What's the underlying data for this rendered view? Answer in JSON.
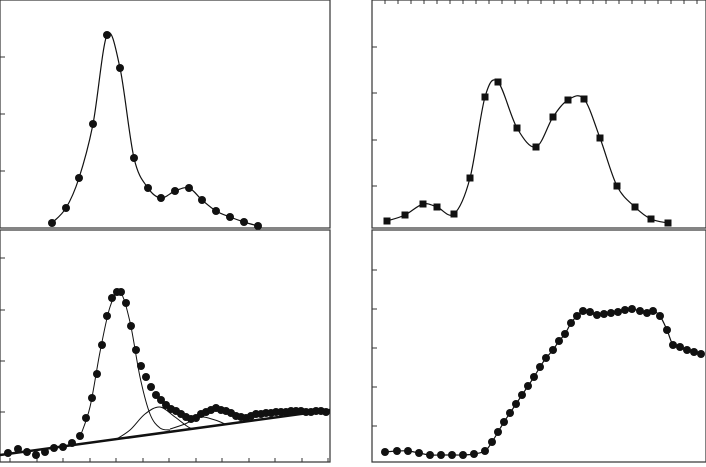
{
  "chart_data": [
    {
      "type": "scatter",
      "xlim": [
        0,
        330
      ],
      "ylim": [
        0,
        228
      ],
      "yticks": [
        57,
        114,
        171
      ],
      "series": [
        {
          "color": "#111111",
          "marker": "circle",
          "line": true,
          "x": [
            52,
            66,
            79,
            93,
            107,
            120,
            134,
            148,
            161,
            175,
            189,
            202,
            216,
            230,
            244,
            258
          ],
          "values": [
            5,
            20,
            50,
            104,
            193,
            160,
            70,
            40,
            30,
            37,
            40,
            28,
            17,
            11,
            6,
            2
          ]
        }
      ]
    },
    {
      "type": "scatter",
      "xlim": [
        0,
        334
      ],
      "ylim": [
        0,
        228
      ],
      "yticks": [
        42,
        88,
        135,
        181
      ],
      "xticks": [
        13,
        26,
        39,
        52,
        65,
        78,
        91,
        104,
        117,
        130,
        143,
        156,
        169,
        182,
        195,
        208,
        221,
        234,
        247,
        260,
        273,
        286,
        299,
        312,
        325
      ],
      "series": [
        {
          "color": "#111111",
          "marker": "square",
          "line": true,
          "x": [
            15,
            33,
            51,
            65,
            82,
            98,
            113,
            126,
            145,
            164,
            181,
            196,
            212,
            228,
            245,
            263,
            279,
            296
          ],
          "values": [
            7,
            13,
            24,
            21,
            14,
            50,
            131,
            146,
            100,
            81,
            111,
            128,
            129,
            90,
            42,
            21,
            9,
            5
          ]
        }
      ]
    },
    {
      "type": "scatter",
      "xlim": [
        0,
        330
      ],
      "ylim": [
        0,
        232
      ],
      "yticks": [
        50,
        101,
        152,
        204
      ],
      "xticks": [
        10,
        37,
        63,
        90,
        116,
        143,
        169,
        196,
        222,
        249,
        275,
        302,
        328
      ],
      "series": [
        {
          "color": "#111111",
          "marker": "circle",
          "line": false,
          "x": [
            8,
            18,
            27,
            36,
            45,
            54,
            63,
            72,
            80,
            86,
            92,
            97,
            102,
            107,
            112,
            117,
            121,
            126,
            131,
            136,
            141,
            146,
            151,
            156,
            161,
            166,
            171,
            176,
            181,
            186,
            191,
            196,
            201,
            206,
            211,
            216,
            221,
            226,
            231,
            236,
            241,
            246,
            251,
            256,
            261,
            266,
            271,
            276,
            281,
            286,
            291,
            296,
            301,
            306,
            311,
            316,
            321,
            326
          ],
          "values": [
            9,
            13,
            10,
            7,
            10,
            14,
            15,
            19,
            26,
            44,
            64,
            88,
            117,
            146,
            164,
            170,
            170,
            159,
            136,
            112,
            96,
            85,
            75,
            67,
            62,
            57,
            53,
            51,
            48,
            45,
            43,
            44,
            48,
            50,
            52,
            54,
            52,
            51,
            49,
            46,
            45,
            44,
            46,
            48,
            48,
            49,
            49,
            50,
            50,
            50,
            51,
            51,
            51,
            50,
            50,
            51,
            51,
            50
          ]
        },
        {
          "color": "#111111",
          "marker": "none",
          "line": true,
          "width": 1,
          "x": [
            80,
            90,
            100,
            110,
            120,
            130,
            140,
            150,
            160,
            170
          ],
          "values": [
            25,
            55,
            110,
            155,
            170,
            140,
            85,
            48,
            34,
            32
          ]
        },
        {
          "color": "#111111",
          "marker": "none",
          "line": true,
          "width": 1,
          "x": [
            115,
            130,
            145,
            160,
            175,
            190,
            200
          ],
          "values": [
            22,
            32,
            48,
            55,
            45,
            34,
            34
          ]
        },
        {
          "color": "#111111",
          "marker": "none",
          "line": true,
          "width": 1,
          "x": [
            170,
            185,
            200,
            215,
            225
          ],
          "values": [
            33,
            38,
            45,
            42,
            38
          ]
        },
        {
          "color": "#111111",
          "marker": "none",
          "line": true,
          "width": 2.5,
          "x": [
            0,
            330
          ],
          "values": [
            7,
            52
          ]
        }
      ]
    },
    {
      "type": "scatter",
      "xlim": [
        0,
        334
      ],
      "ylim": [
        0,
        232
      ],
      "yticks": [
        36,
        75,
        114,
        153,
        192
      ],
      "series": [
        {
          "color": "#111111",
          "marker": "circle",
          "line": true,
          "x": [
            13,
            25,
            36,
            47,
            58,
            69,
            80,
            91,
            102,
            113,
            120,
            126,
            132,
            138,
            144,
            150,
            156,
            162,
            168,
            174,
            181,
            187,
            193,
            199,
            205,
            211,
            218,
            225,
            232,
            239,
            246,
            253,
            260,
            268,
            275,
            281,
            288,
            295,
            301,
            308,
            315,
            322,
            329
          ],
          "values": [
            10,
            11,
            11,
            9,
            7,
            7,
            7,
            7,
            8,
            11,
            20,
            30,
            40,
            49,
            58,
            67,
            76,
            85,
            95,
            104,
            112,
            121,
            128,
            139,
            146,
            151,
            150,
            147,
            148,
            149,
            150,
            152,
            153,
            151,
            149,
            151,
            146,
            132,
            117,
            115,
            112,
            110,
            108
          ]
        }
      ]
    }
  ]
}
